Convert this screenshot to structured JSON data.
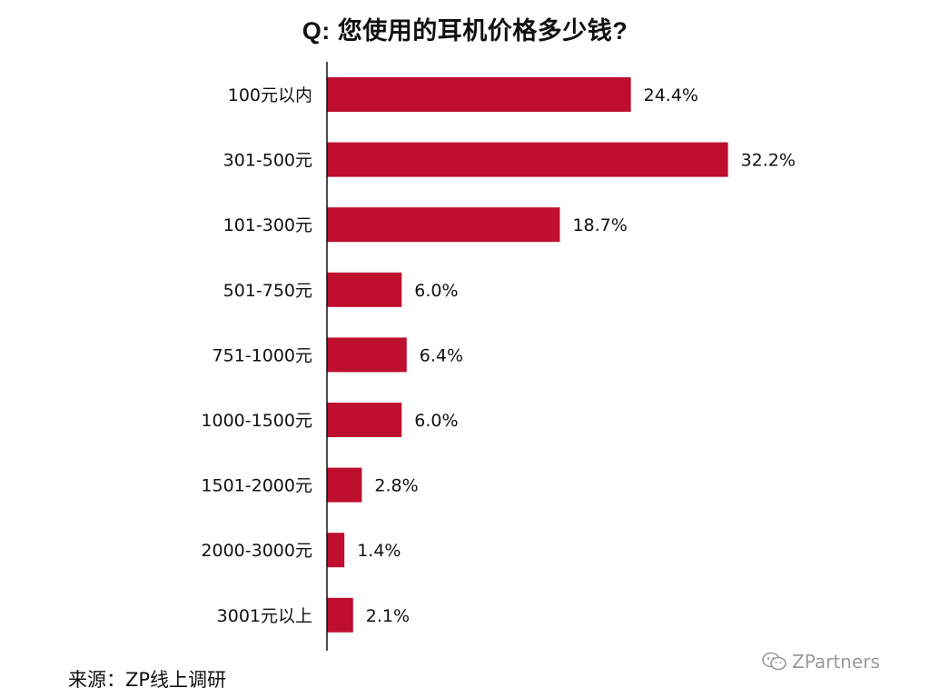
{
  "chart_data": {
    "type": "bar",
    "orientation": "horizontal",
    "title": "Q: 您使用的耳机价格多少钱?",
    "categories": [
      "100元以内",
      "301-500元",
      "101-300元",
      "501-750元",
      "751-1000元",
      "1000-1500元",
      "1501-2000元",
      "2000-3000元",
      "3001元以上"
    ],
    "values": [
      24.4,
      32.2,
      18.7,
      6.0,
      6.4,
      6.0,
      2.8,
      1.4,
      2.1
    ],
    "value_labels": [
      "24.4%",
      "32.2%",
      "18.7%",
      "6.0%",
      "6.4%",
      "6.0%",
      "2.8%",
      "1.4%",
      "2.1%"
    ],
    "unit": "%",
    "xlim": [
      0,
      35
    ],
    "grid": false,
    "bar_color": "#be0f2e"
  },
  "footer": {
    "source": "来源：ZP线上调研",
    "watermark": "ZPartners",
    "watermark_icon": "wechat-icon"
  }
}
